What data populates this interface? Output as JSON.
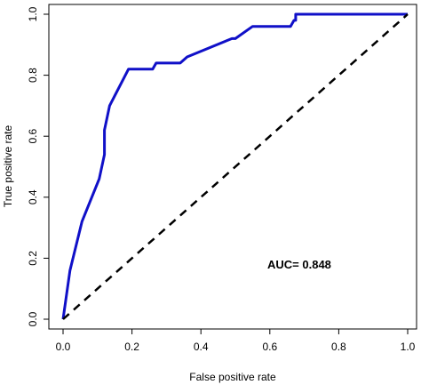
{
  "chart_data": {
    "type": "line",
    "title": "",
    "xlabel": "False positive rate",
    "ylabel": "True positive rate",
    "xlim": [
      0,
      1
    ],
    "ylim": [
      0,
      1
    ],
    "x_ticks": [
      "0.0",
      "0.2",
      "0.4",
      "0.6",
      "0.8",
      "1.0"
    ],
    "y_ticks": [
      "0.0",
      "0.2",
      "0.4",
      "0.6",
      "0.8",
      "1.0"
    ],
    "grid": false,
    "legend": "none",
    "annotation": "AUC= 0.848",
    "series": [
      {
        "color": "#1010c8",
        "style": "solid",
        "points": [
          [
            0.0,
            0.0
          ],
          [
            0.02,
            0.16
          ],
          [
            0.055,
            0.32
          ],
          [
            0.105,
            0.46
          ],
          [
            0.12,
            0.54
          ],
          [
            0.12,
            0.62
          ],
          [
            0.135,
            0.7
          ],
          [
            0.19,
            0.82
          ],
          [
            0.26,
            0.82
          ],
          [
            0.27,
            0.84
          ],
          [
            0.34,
            0.84
          ],
          [
            0.36,
            0.86
          ],
          [
            0.49,
            0.92
          ],
          [
            0.5,
            0.92
          ],
          [
            0.55,
            0.96
          ],
          [
            0.66,
            0.96
          ],
          [
            0.67,
            0.98
          ],
          [
            0.675,
            0.98
          ],
          [
            0.675,
            1.0
          ],
          [
            1.0,
            1.0
          ]
        ]
      },
      {
        "color": "#000000",
        "style": "dashed",
        "points": [
          [
            0.0,
            0.0
          ],
          [
            1.0,
            1.0
          ]
        ]
      }
    ]
  }
}
